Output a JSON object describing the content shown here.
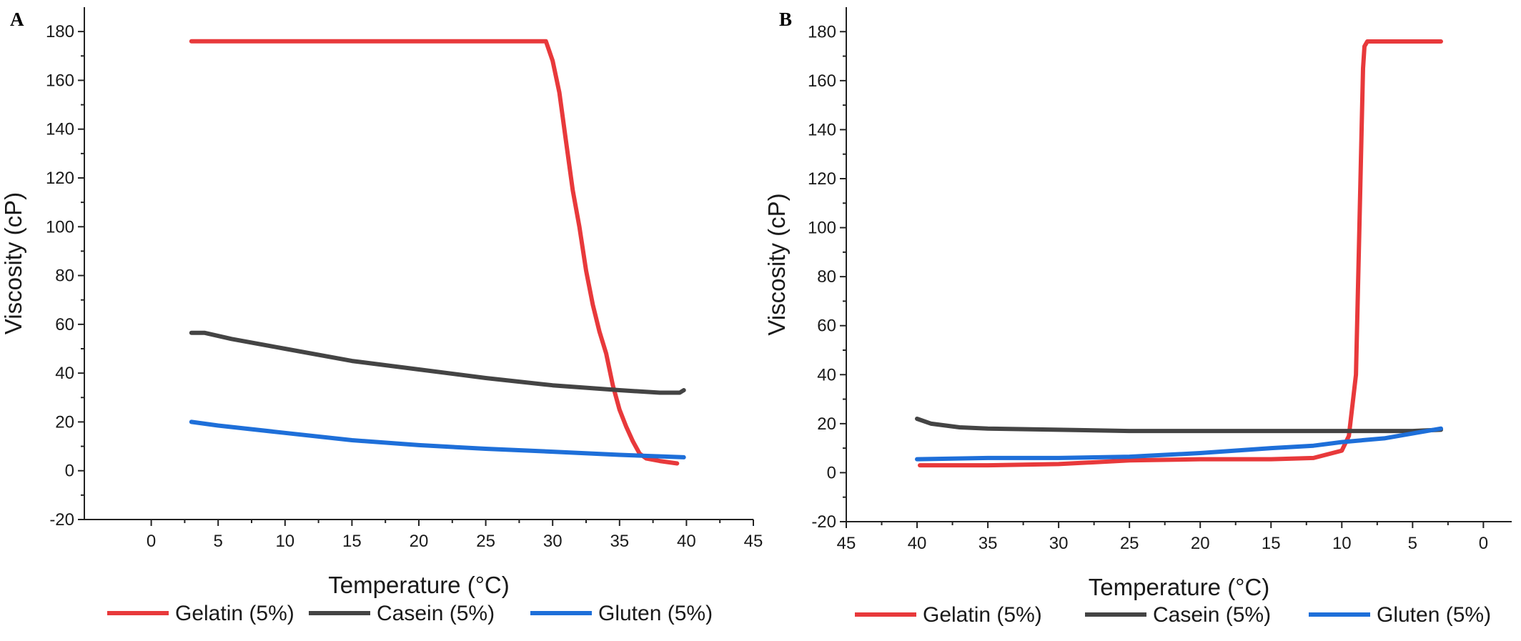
{
  "chart_data": [
    {
      "type": "line",
      "panel_label": "A",
      "xlabel": "Temperature (°C)",
      "ylabel": "Viscosity (cP)",
      "xlim": [
        -5,
        45
      ],
      "ylim": [
        -20,
        190
      ],
      "xticks": [
        0,
        5,
        10,
        15,
        20,
        25,
        30,
        35,
        40,
        45
      ],
      "yticks": [
        -20,
        0,
        20,
        40,
        60,
        80,
        100,
        120,
        140,
        160,
        180
      ],
      "x_reversed": false,
      "legend_position": "bottom",
      "series": [
        {
          "name": "Gelatin (5%)",
          "color": "#e8393b",
          "x": [
            3,
            10,
            20,
            29.5,
            30,
            30.5,
            31,
            31.5,
            32,
            32.5,
            33,
            33.5,
            34,
            34.5,
            35,
            35.5,
            36,
            36.5,
            37,
            38,
            39.3
          ],
          "y": [
            176,
            176,
            176,
            176,
            168,
            155,
            135,
            115,
            100,
            82,
            68,
            57,
            48,
            35,
            25,
            18,
            12,
            7,
            5,
            4,
            3
          ]
        },
        {
          "name": "Casein (5%)",
          "color": "#444444",
          "x": [
            3,
            4,
            6,
            10,
            15,
            20,
            25,
            30,
            35,
            38,
            39.5,
            39.8
          ],
          "y": [
            56.5,
            56.5,
            54,
            50,
            45,
            41.5,
            38,
            35,
            33,
            32,
            32,
            33
          ]
        },
        {
          "name": "Gluten (5%)",
          "color": "#1e6fd9",
          "x": [
            3,
            5,
            10,
            15,
            20,
            25,
            30,
            35,
            39.8
          ],
          "y": [
            20,
            18.5,
            15.5,
            12.5,
            10.5,
            9,
            7.8,
            6.5,
            5.5
          ]
        }
      ]
    },
    {
      "type": "line",
      "panel_label": "B",
      "xlabel": "Temperature (°C)",
      "ylabel": "Viscosity (cP)",
      "xlim": [
        45,
        -2
      ],
      "ylim": [
        -20,
        190
      ],
      "xticks": [
        45,
        40,
        35,
        30,
        25,
        20,
        15,
        10,
        5,
        0
      ],
      "yticks": [
        -20,
        0,
        20,
        40,
        60,
        80,
        100,
        120,
        140,
        160,
        180
      ],
      "x_reversed": true,
      "legend_position": "bottom",
      "series": [
        {
          "name": "Gelatin (5%)",
          "color": "#e8393b",
          "x": [
            39.8,
            35,
            30,
            25,
            20,
            15,
            12,
            10,
            9.5,
            9,
            8.8,
            8.6,
            8.5,
            8.4,
            8.2,
            8,
            5,
            3
          ],
          "y": [
            3,
            3,
            3.5,
            5,
            5.5,
            5.5,
            6,
            9,
            15,
            40,
            90,
            140,
            165,
            174,
            176,
            176,
            176,
            176
          ]
        },
        {
          "name": "Casein (5%)",
          "color": "#444444",
          "x": [
            40,
            39,
            37,
            35,
            30,
            25,
            20,
            15,
            10,
            5,
            3
          ],
          "y": [
            22,
            20,
            18.5,
            18,
            17.5,
            17,
            17,
            17,
            17,
            17,
            17.5
          ]
        },
        {
          "name": "Gluten (5%)",
          "color": "#1e6fd9",
          "x": [
            40,
            35,
            30,
            25,
            20,
            15,
            12,
            10,
            7,
            5,
            3
          ],
          "y": [
            5.5,
            6,
            6,
            6.5,
            8,
            10,
            11,
            12.5,
            14,
            16,
            18
          ]
        }
      ]
    }
  ]
}
